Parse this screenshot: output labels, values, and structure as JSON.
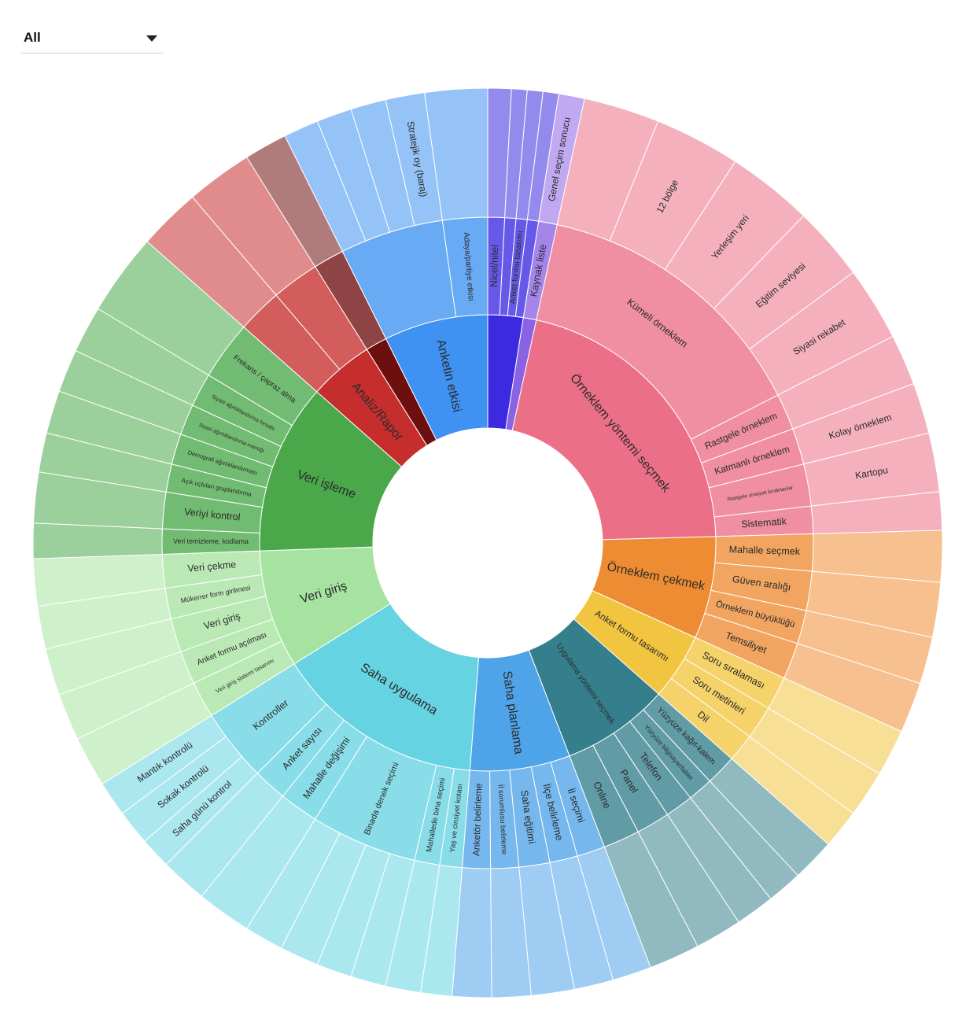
{
  "filter": {
    "selected": "All"
  },
  "colors": {
    "green": "#4aa84a",
    "lightgreen": "#a6e3a1",
    "cyan": "#66d3e2",
    "blue": "#4fa3e8",
    "teal": "#357f8c",
    "yellow": "#f2c540",
    "orange": "#ee8c33",
    "pink": "#ec6f88",
    "lavender": "#8c62e4",
    "indigo": "#3c2ae0",
    "azure": "#3f92f2",
    "maroon": "#6e0f0f",
    "red": "#c62e2e"
  },
  "chart_data": {
    "type": "sunburst",
    "root": "",
    "sectors": [
      {
        "label": "Örneklem yöntemi seçmek",
        "color": "pink",
        "start": 12.3,
        "end": 88.4,
        "children": [
          {
            "label": "Kümeli örneklem",
            "start": 12.3,
            "end": 63.0,
            "children": [
              {
                "label": "",
                "start": 12.3,
                "end": 22.0
              },
              {
                "label": "12 bölge",
                "start": 22.0,
                "end": 33.0
              },
              {
                "label": "Yerleşim yeri",
                "start": 33.0,
                "end": 44.0
              },
              {
                "label": "Eğitim seviyesi",
                "start": 44.0,
                "end": 53.5
              },
              {
                "label": "Siyasi rekabet",
                "start": 53.5,
                "end": 63.0
              }
            ]
          },
          {
            "label": "Rastgele örneklem",
            "start": 63.0,
            "end": 69.5,
            "children": [
              {
                "label": "",
                "start": 63.0,
                "end": 69.5
              }
            ]
          },
          {
            "label": "Katmanlı örneklem",
            "start": 69.5,
            "end": 76.0,
            "children": [
              {
                "label": "Kolay örneklem",
                "start": 69.5,
                "end": 76.0
              }
            ]
          },
          {
            "label": "Rastgele cinsiyeti bırakılanlar",
            "start": 76.0,
            "end": 83.5,
            "children": [
              {
                "label": "Kartopu",
                "start": 76.0,
                "end": 83.5
              }
            ]
          },
          {
            "label": "Sistematik",
            "start": 83.5,
            "end": 88.4,
            "children": [
              {
                "label": "",
                "start": 83.5,
                "end": 88.4
              }
            ]
          }
        ]
      },
      {
        "label": "Örneklem çekmek",
        "color": "orange",
        "start": 88.4,
        "end": 114.5,
        "children": [
          {
            "label": "Mahalle seçmek",
            "start": 88.4,
            "end": 95.0,
            "children": [
              {
                "label": "",
                "start": 88.4,
                "end": 95.0
              }
            ]
          },
          {
            "label": "Güven aralığı",
            "start": 95.0,
            "end": 102.0,
            "children": [
              {
                "label": "",
                "start": 95.0,
                "end": 102.0
              }
            ]
          },
          {
            "label": "Örneklem büyüklüğü",
            "start": 102.0,
            "end": 108.0,
            "children": [
              {
                "label": "",
                "start": 102.0,
                "end": 108.0
              }
            ]
          },
          {
            "label": "Temsiliyet",
            "start": 108.0,
            "end": 114.5,
            "children": [
              {
                "label": "",
                "start": 108.0,
                "end": 114.5
              }
            ]
          }
        ]
      },
      {
        "label": "Anket formu tasarımı",
        "color": "yellow",
        "start": 114.5,
        "end": 131.5,
        "children": [
          {
            "label": "Soru sıralaması",
            "start": 114.5,
            "end": 120.5,
            "children": [
              {
                "label": "",
                "start": 114.5,
                "end": 120.5
              }
            ]
          },
          {
            "label": "Soru metinleri",
            "start": 120.5,
            "end": 126.5,
            "children": [
              {
                "label": "",
                "start": 120.5,
                "end": 126.5
              }
            ]
          },
          {
            "label": "Dil",
            "start": 126.5,
            "end": 131.5,
            "children": [
              {
                "label": "",
                "start": 126.5,
                "end": 131.5
              }
            ]
          }
        ]
      },
      {
        "label": "Uygulama yöntemi seçmek",
        "color": "teal",
        "start": 131.5,
        "end": 159.0,
        "children": [
          {
            "label": "Yüzyüze kağıt-kalem",
            "start": 131.5,
            "end": 137.0,
            "children": [
              {
                "label": "",
                "start": 131.5,
                "end": 137.0
              }
            ]
          },
          {
            "label": "Yüzyüze bilgisayar/tablet",
            "start": 137.0,
            "end": 141.5,
            "children": [
              {
                "label": "",
                "start": 137.0,
                "end": 141.5
              }
            ]
          },
          {
            "label": "Telefon",
            "start": 141.5,
            "end": 146.5,
            "children": [
              {
                "label": "",
                "start": 141.5,
                "end": 146.5
              }
            ]
          },
          {
            "label": "Panel",
            "start": 146.5,
            "end": 152.5,
            "children": [
              {
                "label": "",
                "start": 146.5,
                "end": 152.5
              }
            ]
          },
          {
            "label": "Online",
            "start": 152.5,
            "end": 159.0,
            "children": [
              {
                "label": "",
                "start": 152.5,
                "end": 159.0
              }
            ]
          }
        ]
      },
      {
        "label": "Saha planlama",
        "color": "blue",
        "start": 159.0,
        "end": 184.5,
        "children": [
          {
            "label": "İl seçimi",
            "start": 159.0,
            "end": 164.0,
            "children": [
              {
                "label": "",
                "start": 159.0,
                "end": 164.0
              }
            ]
          },
          {
            "label": "İlçe belirleme",
            "start": 164.0,
            "end": 169.0,
            "children": [
              {
                "label": "",
                "start": 164.0,
                "end": 169.0
              }
            ]
          },
          {
            "label": "Saha eğitimi",
            "start": 169.0,
            "end": 174.5,
            "children": [
              {
                "label": "",
                "start": 169.0,
                "end": 174.5
              }
            ]
          },
          {
            "label": "İl sorumlusu belirleme",
            "start": 174.5,
            "end": 179.5,
            "children": [
              {
                "label": "",
                "start": 174.5,
                "end": 179.5
              }
            ]
          },
          {
            "label": "Anketör belirleme",
            "start": 179.5,
            "end": 184.5,
            "children": [
              {
                "label": "",
                "start": 179.5,
                "end": 184.5
              }
            ]
          }
        ]
      },
      {
        "label": "Saha uygulama",
        "color": "cyan",
        "start": 184.5,
        "end": 238.0,
        "children": [
          {
            "label": "Yaş ve cinsiyet kotası",
            "start": 184.5,
            "end": 188.5,
            "children": [
              {
                "label": "",
                "start": 184.5,
                "end": 188.5
              }
            ]
          },
          {
            "label": "Mahallede bina seçimi",
            "start": 188.5,
            "end": 193.0,
            "children": [
              {
                "label": "",
                "start": 188.5,
                "end": 193.0
              }
            ]
          },
          {
            "label": "Binada denek seçimi",
            "start": 193.0,
            "end": 212.0,
            "children": [
              {
                "label": "",
                "start": 193.0,
                "end": 197.5
              },
              {
                "label": "",
                "start": 197.5,
                "end": 202.0
              },
              {
                "label": "",
                "start": 202.0,
                "end": 207.0
              },
              {
                "label": "",
                "start": 207.0,
                "end": 212.0
              }
            ]
          },
          {
            "label": "Mahalle değişimi",
            "start": 212.0,
            "end": 219.0,
            "children": [
              {
                "label": "",
                "start": 212.0,
                "end": 219.0
              }
            ]
          },
          {
            "label": "Anket sayısı",
            "start": 219.0,
            "end": 225.0,
            "children": [
              {
                "label": "",
                "start": 219.0,
                "end": 225.0
              }
            ]
          },
          {
            "label": "Kontroller",
            "start": 225.0,
            "end": 238.0,
            "children": [
              {
                "label": "Saha günü kontrol",
                "start": 225.0,
                "end": 229.0
              },
              {
                "label": "Sokak kontrolü",
                "start": 229.0,
                "end": 233.5
              },
              {
                "label": "Mantık kontrolü",
                "start": 233.5,
                "end": 238.0
              }
            ]
          }
        ]
      },
      {
        "label": "Veri giriş",
        "color": "lightgreen",
        "start": 238.0,
        "end": 268.0,
        "children": [
          {
            "label": "Veri giriş sistemi tasarımı",
            "start": 238.0,
            "end": 244.5,
            "children": [
              {
                "label": "",
                "start": 238.0,
                "end": 244.5
              }
            ]
          },
          {
            "label": "Anket formu açılması",
            "start": 244.5,
            "end": 250.5,
            "children": [
              {
                "label": "",
                "start": 244.5,
                "end": 250.5
              }
            ]
          },
          {
            "label": "Veri giriş",
            "start": 250.5,
            "end": 256.5,
            "children": [
              {
                "label": "",
                "start": 250.5,
                "end": 256.5
              }
            ]
          },
          {
            "label": "Mükerrer form girilmesi",
            "start": 256.5,
            "end": 262.0,
            "children": [
              {
                "label": "",
                "start": 256.5,
                "end": 262.0
              }
            ]
          },
          {
            "label": "Veri çekme",
            "start": 262.0,
            "end": 268.0,
            "children": [
              {
                "label": "",
                "start": 262.0,
                "end": 268.0
              }
            ]
          }
        ]
      },
      {
        "label": "Veri işleme",
        "color": "green",
        "start": 268.0,
        "end": 311.5,
        "children": [
          {
            "label": "Veri temizleme, kodlama",
            "start": 268.0,
            "end": 272.5,
            "children": [
              {
                "label": "",
                "start": 268.0,
                "end": 272.5
              }
            ]
          },
          {
            "label": "Veriyi kontrol",
            "start": 272.5,
            "end": 279.0,
            "children": [
              {
                "label": "",
                "start": 272.5,
                "end": 279.0
              }
            ]
          },
          {
            "label": "Açık uçluları gruplandırma",
            "start": 279.0,
            "end": 284.0,
            "children": [
              {
                "label": "",
                "start": 279.0,
                "end": 284.0
              }
            ]
          },
          {
            "label": "Demografi ağırlıklandırması",
            "start": 284.0,
            "end": 289.5,
            "children": [
              {
                "label": "",
                "start": 284.0,
                "end": 289.5
              }
            ]
          },
          {
            "label": "Siyasi ağırlıklandırma mantığı",
            "start": 289.5,
            "end": 295.0,
            "children": [
              {
                "label": "",
                "start": 289.5,
                "end": 295.0
              }
            ]
          },
          {
            "label": "Siyasi ağırlıklandırma hesabı",
            "start": 295.0,
            "end": 301.0,
            "children": [
              {
                "label": "",
                "start": 295.0,
                "end": 301.0
              }
            ]
          },
          {
            "label": "Frekans / çapraz alma",
            "start": 301.0,
            "end": 311.5,
            "children": [
              {
                "label": "",
                "start": 301.0,
                "end": 311.5
              }
            ]
          }
        ]
      },
      {
        "label": "Analiz/Rapor",
        "color": "red",
        "start": 311.5,
        "end": 328.0,
        "children": [
          {
            "label": "",
            "start": 311.5,
            "end": 319.5,
            "children": [
              {
                "label": "",
                "start": 311.5,
                "end": 319.5
              }
            ]
          },
          {
            "label": "",
            "start": 319.5,
            "end": 328.0,
            "children": [
              {
                "label": "",
                "start": 319.5,
                "end": 328.0
              }
            ]
          }
        ]
      },
      {
        "label": "",
        "color": "maroon",
        "start": 328.0,
        "end": 333.5,
        "children": [
          {
            "label": "",
            "start": 328.0,
            "end": 333.5,
            "children": [
              {
                "label": "",
                "start": 328.0,
                "end": 333.5
              }
            ]
          }
        ]
      },
      {
        "label": "Anketin etkisi",
        "color": "azure",
        "start": 333.5,
        "end": 360.0,
        "children": [
          {
            "label": "",
            "start": 333.5,
            "end": 352.0,
            "children": [
              {
                "label": "",
                "start": 333.5,
                "end": 338.0
              },
              {
                "label": "",
                "start": 338.0,
                "end": 342.5
              },
              {
                "label": "",
                "start": 342.5,
                "end": 347.0
              },
              {
                "label": "Stratejik oy (baraj)",
                "start": 347.0,
                "end": 352.0
              }
            ]
          },
          {
            "label": "Adaya/partiye etkisi",
            "start": 352.0,
            "end": 360.0,
            "children": [
              {
                "label": "",
                "start": 352.0,
                "end": 360.0
              }
            ]
          }
        ]
      },
      {
        "label": "",
        "color": "indigo",
        "start": 0.0,
        "end": 9.0,
        "children": [
          {
            "label": "Nicel/nitel",
            "start": 0.0,
            "end": 3.0,
            "children": [
              {
                "label": "",
                "start": 0.0,
                "end": 3.0
              }
            ]
          },
          {
            "label": "",
            "start": 3.0,
            "end": 5.0,
            "children": [
              {
                "label": "",
                "start": 3.0,
                "end": 5.0
              }
            ]
          },
          {
            "label": "Anket formu tasarımı",
            "start": 5.0,
            "end": 7.0,
            "children": [
              {
                "label": "",
                "start": 5.0,
                "end": 7.0
              }
            ]
          },
          {
            "label": "",
            "start": 7.0,
            "end": 9.0,
            "children": [
              {
                "label": "",
                "start": 7.0,
                "end": 9.0
              }
            ]
          }
        ]
      },
      {
        "label": "",
        "color": "lavender",
        "start": 9.0,
        "end": 12.3,
        "children": [
          {
            "label": "Kaynak liste",
            "start": 9.0,
            "end": 12.3,
            "children": [
              {
                "label": "Genel seçim sonucu",
                "start": 9.0,
                "end": 12.3
              }
            ]
          }
        ]
      }
    ]
  }
}
